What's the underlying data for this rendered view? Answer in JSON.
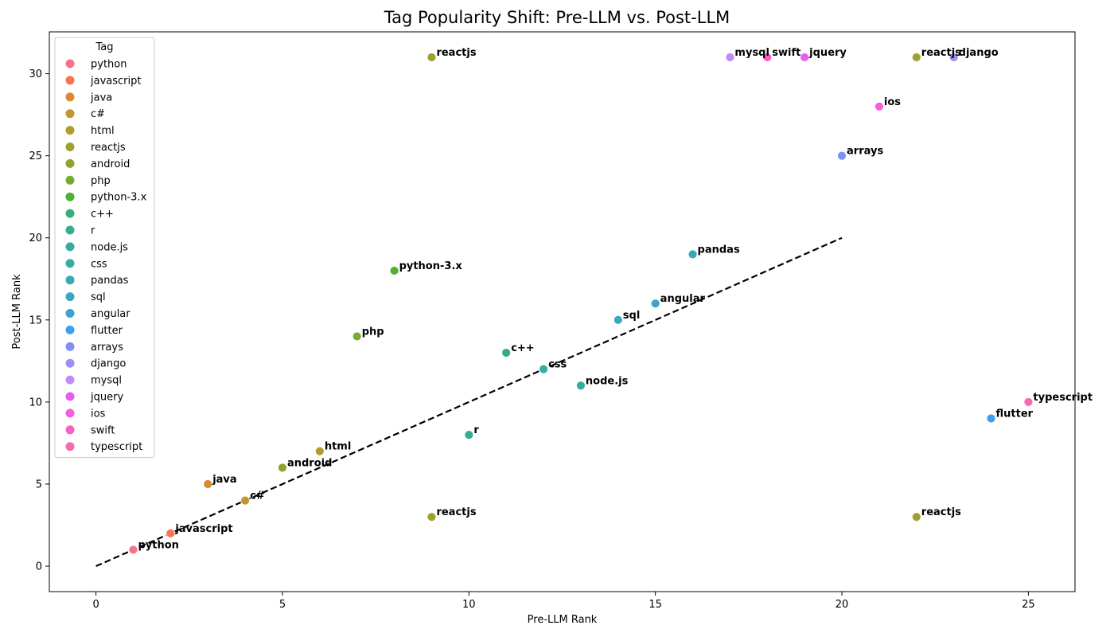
{
  "chart_data": {
    "type": "scatter",
    "title": "Tag Popularity Shift: Pre-LLM vs. Post-LLM",
    "xlabel": "Pre-LLM Rank",
    "ylabel": "Post-LLM Rank",
    "xlim": [
      -1.25,
      26.25
    ],
    "ylim": [
      -1.55,
      32.55
    ],
    "xticks": [
      0,
      5,
      10,
      15,
      20,
      25
    ],
    "yticks": [
      0,
      5,
      10,
      15,
      20,
      25,
      30
    ],
    "grid": false,
    "legend": {
      "title": "Tag",
      "placement": "top-left"
    },
    "reference_line": {
      "style": "dashed",
      "color": "#000000",
      "from": [
        0,
        0
      ],
      "to": [
        20,
        20
      ]
    },
    "series": [
      {
        "name": "python",
        "color": "#f77189"
      },
      {
        "name": "javascript",
        "color": "#f7754f"
      },
      {
        "name": "java",
        "color": "#dc8932"
      },
      {
        "name": "c#",
        "color": "#c39532"
      },
      {
        "name": "html",
        "color": "#ae9d31"
      },
      {
        "name": "reactjs",
        "color": "#a0a032"
      },
      {
        "name": "android",
        "color": "#8da431"
      },
      {
        "name": "php",
        "color": "#77ab31"
      },
      {
        "name": "python-3.x",
        "color": "#50b131"
      },
      {
        "name": "c++",
        "color": "#33b07a"
      },
      {
        "name": "r",
        "color": "#34ae91"
      },
      {
        "name": "node.js",
        "color": "#35ac9f"
      },
      {
        "name": "css",
        "color": "#36ada4"
      },
      {
        "name": "pandas",
        "color": "#37abb2"
      },
      {
        "name": "sql",
        "color": "#39a7c0"
      },
      {
        "name": "angular",
        "color": "#3ba3d0"
      },
      {
        "name": "flutter",
        "color": "#3f9fed"
      },
      {
        "name": "arrays",
        "color": "#7f90f4"
      },
      {
        "name": "django",
        "color": "#a48cf4"
      },
      {
        "name": "mysql",
        "color": "#c18af4"
      },
      {
        "name": "jquery",
        "color": "#e45ef2"
      },
      {
        "name": "ios",
        "color": "#f15fdf"
      },
      {
        "name": "swift",
        "color": "#f561c4"
      },
      {
        "name": "typescript",
        "color": "#f66bad"
      }
    ],
    "points": [
      {
        "tag": "python",
        "x": 1,
        "y": 1
      },
      {
        "tag": "javascript",
        "x": 2,
        "y": 2
      },
      {
        "tag": "java",
        "x": 3,
        "y": 5
      },
      {
        "tag": "c#",
        "x": 4,
        "y": 4
      },
      {
        "tag": "android",
        "x": 5,
        "y": 6
      },
      {
        "tag": "html",
        "x": 6,
        "y": 7
      },
      {
        "tag": "php",
        "x": 7,
        "y": 14
      },
      {
        "tag": "python-3.x",
        "x": 8,
        "y": 18
      },
      {
        "tag": "reactjs",
        "x": 9,
        "y": 31
      },
      {
        "tag": "reactjs",
        "x": 9,
        "y": 3
      },
      {
        "tag": "r",
        "x": 10,
        "y": 8
      },
      {
        "tag": "c++",
        "x": 11,
        "y": 13
      },
      {
        "tag": "css",
        "x": 12,
        "y": 12
      },
      {
        "tag": "node.js",
        "x": 13,
        "y": 11
      },
      {
        "tag": "sql",
        "x": 14,
        "y": 15
      },
      {
        "tag": "angular",
        "x": 15,
        "y": 16
      },
      {
        "tag": "pandas",
        "x": 16,
        "y": 19
      },
      {
        "tag": "mysql",
        "x": 17,
        "y": 31
      },
      {
        "tag": "swift",
        "x": 18,
        "y": 31
      },
      {
        "tag": "jquery",
        "x": 19,
        "y": 31
      },
      {
        "tag": "arrays",
        "x": 20,
        "y": 25
      },
      {
        "tag": "ios",
        "x": 21,
        "y": 28
      },
      {
        "tag": "reactjs",
        "x": 22,
        "y": 31
      },
      {
        "tag": "reactjs",
        "x": 22,
        "y": 3
      },
      {
        "tag": "django",
        "x": 23,
        "y": 31
      },
      {
        "tag": "flutter",
        "x": 24,
        "y": 9
      },
      {
        "tag": "typescript",
        "x": 25,
        "y": 10
      }
    ]
  }
}
